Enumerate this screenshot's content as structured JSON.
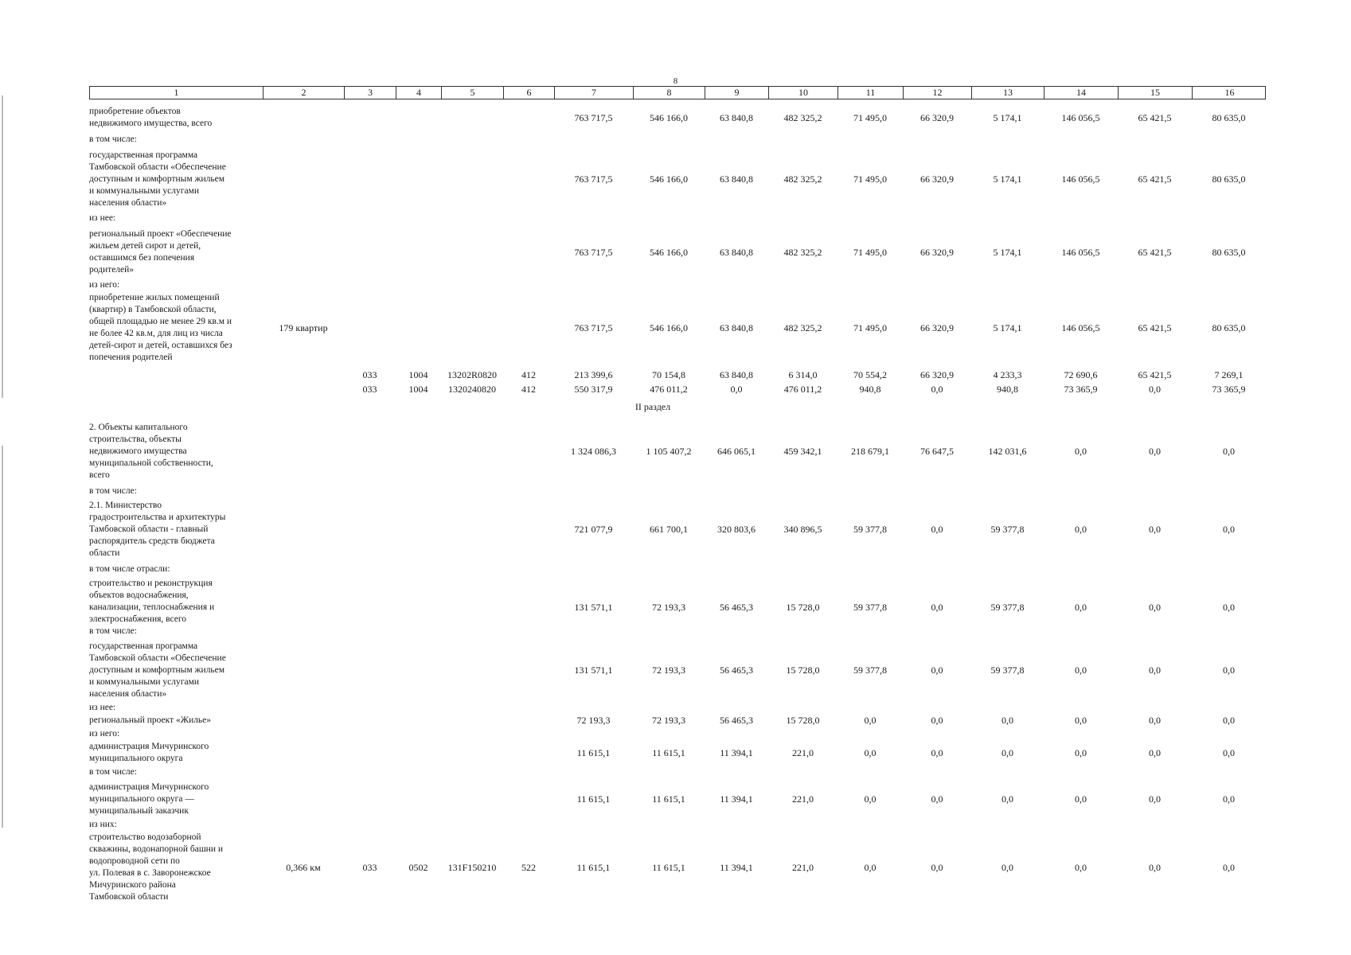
{
  "page_number": "8",
  "columns": [
    "1",
    "2",
    "3",
    "4",
    "5",
    "6",
    "7",
    "8",
    "9",
    "10",
    "11",
    "12",
    "13",
    "14",
    "15",
    "16"
  ],
  "section": "II раздел",
  "rows": [
    {
      "top": 133,
      "lines": [
        "приобретение объектов",
        "недвижимого имущества, всего"
      ],
      "c2": "",
      "c3": "",
      "c4": "",
      "c5": "",
      "c6": "",
      "values": [
        "763 717,5",
        "546 166,0",
        "63 840,8",
        "482 325,2",
        "71 495,0",
        "66 320,9",
        "5 174,1",
        "146 056,5",
        "65 421,5",
        "80 635,0"
      ]
    },
    {
      "top": 168,
      "lines": [
        "в том числе:"
      ],
      "c2": "",
      "c3": "",
      "c4": "",
      "c5": "",
      "c6": "",
      "values": []
    },
    {
      "top": 188,
      "lines": [
        "государственная программа",
        "Тамбовской области «Обеспечение",
        "доступным и комфортным жильем",
        "и коммунальными услугами",
        "населения области»"
      ],
      "c2": "",
      "c3": "",
      "c4": "",
      "c5": "",
      "c6": "",
      "values": [
        "763 717,5",
        "546 166,0",
        "63 840,8",
        "482 325,2",
        "71 495,0",
        "66 320,9",
        "5 174,1",
        "146 056,5",
        "65 421,5",
        "80 635,0"
      ]
    },
    {
      "top": 267,
      "lines": [
        "из нее:"
      ],
      "c2": "",
      "c3": "",
      "c4": "",
      "c5": "",
      "c6": "",
      "values": []
    },
    {
      "top": 287,
      "lines": [
        "региональный проект «Обеспечение",
        "жильем детей сирот и детей,",
        "оставшимся без попечения",
        "родителей»"
      ],
      "c2": "",
      "c3": "",
      "c4": "",
      "c5": "",
      "c6": "",
      "values": [
        "763 717,5",
        "546 166,0",
        "63 840,8",
        "482 325,2",
        "71 495,0",
        "66 320,9",
        "5 174,1",
        "146 056,5",
        "65 421,5",
        "80 635,0"
      ]
    },
    {
      "top": 351,
      "lines": [
        "из него:"
      ],
      "c2": "",
      "c3": "",
      "c4": "",
      "c5": "",
      "c6": "",
      "values": []
    },
    {
      "top": 367,
      "lines": [
        "приобретение жилых помещений",
        "(квартир) в Тамбовской области,",
        "общей площадью не менее 29 кв.м и",
        "не более 42 кв.м, для лиц из числа",
        "детей-сирот и детей, оставшихся без",
        "попечения родителей"
      ],
      "c2": "179 квартир",
      "c3": "",
      "c4": "",
      "c5": "",
      "c6": "",
      "values": [
        "763 717,5",
        "546 166,0",
        "63 840,8",
        "482 325,2",
        "71 495,0",
        "66 320,9",
        "5 174,1",
        "146 056,5",
        "65 421,5",
        "80 635,0"
      ]
    },
    {
      "top": 464,
      "lines": [],
      "c2": "",
      "c3": "033",
      "c4": "1004",
      "c5": "13202R0820",
      "c6": "412",
      "values": [
        "213 399,6",
        "70 154,8",
        "63 840,8",
        "6 314,0",
        "70 554,2",
        "66 320,9",
        "4 233,3",
        "72 690,6",
        "65 421,5",
        "7 269,1"
      ]
    },
    {
      "top": 482,
      "lines": [],
      "c2": "",
      "c3": "033",
      "c4": "1004",
      "c5": "1320240820",
      "c6": "412",
      "values": [
        "550 317,9",
        "476 011,2",
        "0,0",
        "476 011,2",
        "940,8",
        "0,0",
        "940,8",
        "73 365,9",
        "0,0",
        "73 365,9"
      ]
    },
    {
      "top": 530,
      "lines": [
        "2. Объекты капитального",
        "строительства, объекты",
        "недвижимого имущества",
        "муниципальной собственности,",
        "всего"
      ],
      "c2": "",
      "c3": "",
      "c4": "",
      "c5": "",
      "c6": "",
      "values": [
        "1 324 086,3",
        "1 105 407,2",
        "646 065,1",
        "459 342,1",
        "218 679,1",
        "76 647,5",
        "142 031,6",
        "0,0",
        "0,0",
        "0,0"
      ]
    },
    {
      "top": 610,
      "lines": [
        "в том числе:"
      ],
      "c2": "",
      "c3": "",
      "c4": "",
      "c5": "",
      "c6": "",
      "values": []
    },
    {
      "top": 628,
      "lines": [
        "2.1. Министерство",
        "градостроительства и архитектуры",
        "Тамбовской области - главный",
        "распорядитель средств бюджета",
        "области"
      ],
      "c2": "",
      "c3": "",
      "c4": "",
      "c5": "",
      "c6": "",
      "values": [
        "721 077,9",
        "661 700,1",
        "320 803,6",
        "340 896,5",
        "59 377,8",
        "0,0",
        "59 377,8",
        "0,0",
        "0,0",
        "0,0"
      ]
    },
    {
      "top": 708,
      "lines": [
        "в том числе отрасли:"
      ],
      "c2": "",
      "c3": "",
      "c4": "",
      "c5": "",
      "c6": "",
      "values": []
    },
    {
      "top": 726,
      "lines": [
        "строительство и реконструкция",
        "объектов водоснабжения,",
        "канализации, теплоснабжения и",
        "электроснабжения, всего",
        "в том числе:"
      ],
      "c2": "",
      "c3": "",
      "c4": "",
      "c5": "",
      "c6": "",
      "values": [
        "131 571,1",
        "72 193,3",
        "56 465,3",
        "15 728,0",
        "59 377,8",
        "0,0",
        "59 377,8",
        "0,0",
        "0,0",
        "0,0"
      ]
    },
    {
      "top": 805,
      "lines": [
        "государственная программа",
        "Тамбовской области «Обеспечение",
        "доступным и комфортным жильем",
        "и коммунальными услугами",
        "населения области»"
      ],
      "c2": "",
      "c3": "",
      "c4": "",
      "c5": "",
      "c6": "",
      "values": [
        "131 571,1",
        "72 193,3",
        "56 465,3",
        "15 728,0",
        "59 377,8",
        "0,0",
        "59 377,8",
        "0,0",
        "0,0",
        "0,0"
      ]
    },
    {
      "top": 882,
      "lines": [
        "из нее:"
      ],
      "c2": "",
      "c3": "",
      "c4": "",
      "c5": "",
      "c6": "",
      "values": []
    },
    {
      "top": 898,
      "lines": [
        "региональный проект «Жилье»"
      ],
      "c2": "",
      "c3": "",
      "c4": "",
      "c5": "",
      "c6": "",
      "values": [
        "72 193,3",
        "72 193,3",
        "56 465,3",
        "15 728,0",
        "0,0",
        "0,0",
        "0,0",
        "0,0",
        "0,0",
        "0,0"
      ]
    },
    {
      "top": 915,
      "lines": [
        "из него:"
      ],
      "c2": "",
      "c3": "",
      "c4": "",
      "c5": "",
      "c6": "",
      "values": []
    },
    {
      "top": 931,
      "lines": [
        "администрация Мичуринского",
        "муниципального округа"
      ],
      "c2": "",
      "c3": "",
      "c4": "",
      "c5": "",
      "c6": "",
      "values": [
        "11 615,1",
        "11 615,1",
        "11 394,1",
        "221,0",
        "0,0",
        "0,0",
        "0,0",
        "0,0",
        "0,0",
        "0,0"
      ]
    },
    {
      "top": 963,
      "lines": [
        "в том числе:"
      ],
      "c2": "",
      "c3": "",
      "c4": "",
      "c5": "",
      "c6": "",
      "values": []
    },
    {
      "top": 982,
      "lines": [
        "администрация Мичуринского",
        "муниципального округа —",
        "муниципальный заказчик"
      ],
      "c2": "",
      "c3": "",
      "c4": "",
      "c5": "",
      "c6": "",
      "values": [
        "11 615,1",
        "11 615,1",
        "11 394,1",
        "221,0",
        "0,0",
        "0,0",
        "0,0",
        "0,0",
        "0,0",
        "0,0"
      ]
    },
    {
      "top": 1029,
      "lines": [
        "из них:"
      ],
      "c2": "",
      "c3": "",
      "c4": "",
      "c5": "",
      "c6": "",
      "values": []
    },
    {
      "top": 1045,
      "lines": [
        "строительство водозаборной",
        "скважины, водонапорной башни и",
        "водопроводной сети по",
        "ул. Полевая в с. Заворонежское",
        "Мичуринского района",
        "Тамбовской области"
      ],
      "c2": "0,366 км",
      "c3": "033",
      "c4": "0502",
      "c5": "131F150210",
      "c6": "522",
      "values": [
        "11 615,1",
        "11 615,1",
        "11 394,1",
        "221,0",
        "0,0",
        "0,0",
        "0,0",
        "0,0",
        "0,0",
        "0,0"
      ]
    }
  ]
}
